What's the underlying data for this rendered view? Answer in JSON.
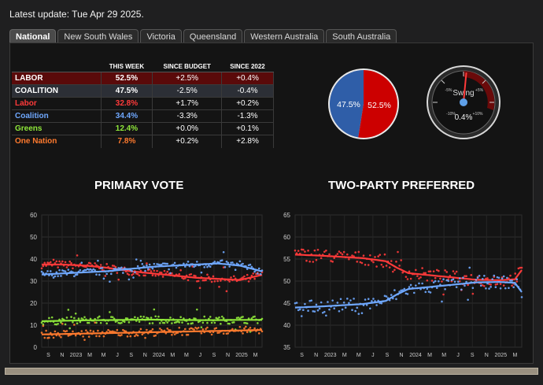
{
  "header": {
    "latest_update": "Latest update: Tue Apr 29 2025."
  },
  "tabs": [
    {
      "label": "National",
      "active": true
    },
    {
      "label": "New South Wales",
      "active": false
    },
    {
      "label": "Victoria",
      "active": false
    },
    {
      "label": "Queensland",
      "active": false
    },
    {
      "label": "Western Australia",
      "active": false
    },
    {
      "label": "South Australia",
      "active": false
    }
  ],
  "summary": {
    "headers": [
      "",
      "THIS WEEK",
      "SINCE BUDGET",
      "SINCE 2022"
    ],
    "rows": [
      {
        "name": "LABOR",
        "this_week": "52.5%",
        "since_budget": "+2.5%",
        "since_2022": "+0.4%",
        "color": "#ffffff"
      },
      {
        "name": "COALITION",
        "this_week": "47.5%",
        "since_budget": "-2.5%",
        "since_2022": "-0.4%",
        "color": "#ffffff"
      },
      {
        "name": "Labor",
        "this_week": "32.8%",
        "since_budget": "+1.7%",
        "since_2022": "+0.2%",
        "color": "#ff3a3a"
      },
      {
        "name": "Coalition",
        "this_week": "34.4%",
        "since_budget": "-3.3%",
        "since_2022": "-1.3%",
        "color": "#6fa8ff"
      },
      {
        "name": "Greens",
        "this_week": "12.4%",
        "since_budget": "+0.0%",
        "since_2022": "+0.1%",
        "color": "#8fe83a"
      },
      {
        "name": "One Nation",
        "this_week": "7.8%",
        "since_budget": "+0.2%",
        "since_2022": "+2.8%",
        "color": "#ff7a2e"
      }
    ]
  },
  "pie": {
    "left_label": "47.5%",
    "right_label": "52.5%",
    "coalition": 47.5,
    "labor": 52.5,
    "coalition_color": "#2f5ea8",
    "labor_color": "#cc0000"
  },
  "gauge": {
    "title": "Swing",
    "value_label": "0.4%",
    "value": 0.4,
    "ticks": [
      "-5%",
      "+5%",
      "-10%",
      "+10%"
    ]
  },
  "charts": {
    "primary": {
      "title": "PRIMARY VOTE",
      "yticks": [
        "0",
        "10",
        "20",
        "30",
        "40",
        "50",
        "60"
      ],
      "xticks": [
        "S",
        "N",
        "2023",
        "M",
        "M",
        "J",
        "S",
        "N",
        "2024",
        "M",
        "M",
        "J",
        "S",
        "N",
        "2025",
        "M"
      ]
    },
    "tpp": {
      "title": "TWO-PARTY PREFERRED",
      "yticks": [
        "35",
        "40",
        "45",
        "50",
        "55",
        "60",
        "65"
      ],
      "xticks": [
        "S",
        "N",
        "2023",
        "M",
        "M",
        "J",
        "S",
        "N",
        "2024",
        "M",
        "M",
        "J",
        "S",
        "N",
        "2025",
        "M"
      ]
    }
  },
  "chart_data": [
    {
      "type": "scatter",
      "title": "PRIMARY VOTE",
      "xlabel": "",
      "ylabel": "",
      "ylim": [
        0,
        60
      ],
      "x_range": [
        "2022-08",
        "2025-04"
      ],
      "series": [
        {
          "name": "Labor",
          "color": "#ff3a3a",
          "x": [
            0,
            0.1,
            0.2,
            0.3,
            0.4,
            0.5,
            0.6,
            0.7,
            0.8,
            0.9,
            1.0
          ],
          "values": [
            37.5,
            37.5,
            37.0,
            36.0,
            34.5,
            33.5,
            32.5,
            31.5,
            31.0,
            30.5,
            32.8
          ]
        },
        {
          "name": "Coalition",
          "color": "#6fa8ff",
          "x": [
            0,
            0.1,
            0.2,
            0.3,
            0.4,
            0.5,
            0.6,
            0.7,
            0.8,
            0.9,
            1.0
          ],
          "values": [
            33.0,
            33.5,
            34.0,
            34.5,
            35.5,
            36.5,
            37.0,
            37.5,
            38.0,
            37.0,
            34.4
          ]
        },
        {
          "name": "Greens",
          "color": "#8fe83a",
          "x": [
            0,
            0.1,
            0.2,
            0.3,
            0.4,
            0.5,
            0.6,
            0.7,
            0.8,
            0.9,
            1.0
          ],
          "values": [
            11.8,
            12.0,
            12.2,
            12.3,
            12.4,
            12.5,
            12.4,
            12.3,
            12.3,
            12.4,
            12.4
          ]
        },
        {
          "name": "One Nation",
          "color": "#ff7a2e",
          "x": [
            0,
            0.1,
            0.2,
            0.3,
            0.4,
            0.5,
            0.6,
            0.7,
            0.8,
            0.9,
            1.0
          ],
          "values": [
            5.8,
            6.0,
            6.2,
            6.4,
            6.6,
            6.8,
            7.0,
            7.2,
            7.4,
            7.6,
            7.8
          ]
        }
      ]
    },
    {
      "type": "scatter",
      "title": "TWO-PARTY PREFERRED",
      "xlabel": "",
      "ylabel": "",
      "ylim": [
        35,
        65
      ],
      "x_range": [
        "2022-08",
        "2025-04"
      ],
      "series": [
        {
          "name": "Labor",
          "color": "#ff3a3a",
          "x": [
            0,
            0.1,
            0.2,
            0.3,
            0.4,
            0.45,
            0.5,
            0.6,
            0.7,
            0.8,
            0.9,
            0.97,
            1.0
          ],
          "values": [
            56.0,
            55.8,
            55.5,
            55.2,
            54.5,
            53.0,
            51.8,
            51.3,
            50.8,
            50.3,
            50.2,
            50.4,
            52.5
          ]
        },
        {
          "name": "Coalition",
          "color": "#6fa8ff",
          "x": [
            0,
            0.1,
            0.2,
            0.3,
            0.4,
            0.45,
            0.5,
            0.6,
            0.7,
            0.8,
            0.9,
            0.97,
            1.0
          ],
          "values": [
            44.0,
            44.2,
            44.5,
            44.8,
            45.5,
            47.0,
            48.2,
            48.7,
            49.2,
            49.7,
            49.8,
            49.6,
            47.5
          ]
        }
      ]
    }
  ]
}
